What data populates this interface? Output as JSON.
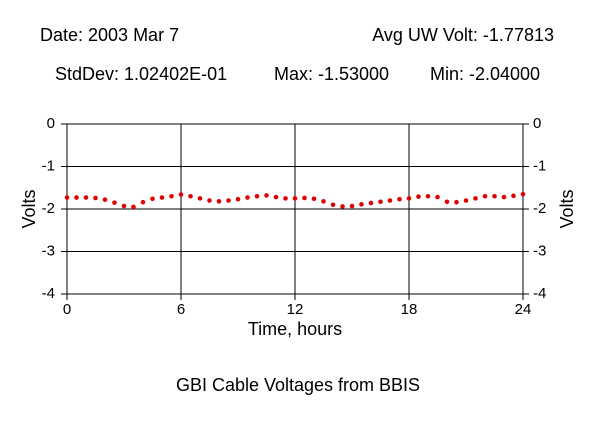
{
  "chart_data": {
    "type": "scatter",
    "title": "GBI Cable Voltages from BBIS",
    "annotations": [
      "Date: 2003 Mar 7",
      "Avg UW Volt: -1.77813",
      "StdDev: 1.02402E-01",
      "Max: -1.53000",
      "Min: -2.04000"
    ],
    "xlabel": "Time, hours",
    "ylabel": "Volts",
    "y2label": "Volts",
    "x": [
      0,
      0.5,
      1,
      1.5,
      2,
      2.5,
      3,
      3.5,
      4,
      4.5,
      5,
      5.5,
      6,
      6.5,
      7,
      7.5,
      8,
      8.5,
      9,
      9.5,
      10,
      10.5,
      11,
      11.5,
      12,
      12.5,
      13,
      13.5,
      14,
      14.5,
      15,
      15.5,
      16,
      16.5,
      17,
      17.5,
      18,
      18.5,
      19,
      19.5,
      20,
      20.5,
      21,
      21.5,
      22,
      22.5,
      23,
      23.5,
      24
    ],
    "series": [
      {
        "color": "#e00000",
        "values": [
          -1.73,
          -1.73,
          -1.73,
          -1.74,
          -1.78,
          -1.85,
          -1.93,
          -1.95,
          -1.84,
          -1.76,
          -1.73,
          -1.7,
          -1.66,
          -1.7,
          -1.75,
          -1.8,
          -1.82,
          -1.8,
          -1.77,
          -1.73,
          -1.7,
          -1.68,
          -1.72,
          -1.75,
          -1.75,
          -1.74,
          -1.76,
          -1.82,
          -1.9,
          -1.94,
          -1.93,
          -1.89,
          -1.86,
          -1.83,
          -1.8,
          -1.77,
          -1.75,
          -1.71,
          -1.7,
          -1.72,
          -1.83,
          -1.84,
          -1.8,
          -1.75,
          -1.7,
          -1.7,
          -1.72,
          -1.69,
          -1.65
        ]
      }
    ],
    "xlim": [
      0,
      24
    ],
    "xticks": [
      0,
      6,
      12,
      18,
      24
    ],
    "ylim": [
      -4,
      0
    ],
    "yticks": [
      0,
      -1,
      -2,
      -3,
      -4
    ],
    "y2lim": [
      -4,
      0
    ],
    "y2ticks": [
      0,
      -1,
      -2,
      -3,
      -4
    ],
    "grid": true
  }
}
